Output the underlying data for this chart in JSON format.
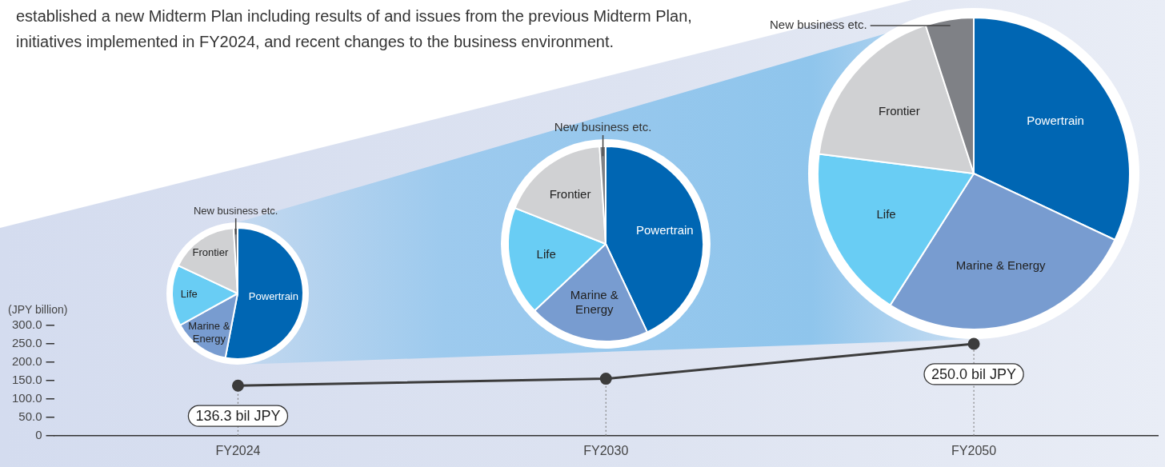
{
  "chart_data": [
    {
      "type": "line",
      "annotations": [
        "established a new Midterm Plan including results of and issues from the previous Midterm Plan,",
        "initiatives implemented in FY2024, and recent changes to the business environment."
      ],
      "ylabel": "(JPY billion)",
      "categories": [
        "FY2024",
        "FY2030",
        "FY2050"
      ],
      "values": [
        136.3,
        155,
        250.0
      ],
      "value_labels": [
        "136.3 bil JPY",
        null,
        "250.0 bil JPY"
      ],
      "color": "#3c3c3c",
      "marker": "circle",
      "line_style": "solid",
      "ylim": [
        0,
        300
      ],
      "yticks": [
        0,
        {
          "value": 50,
          "label": "50.0"
        },
        {
          "value": 100,
          "label": "100.0"
        },
        {
          "value": 150,
          "label": "150.0"
        },
        {
          "value": 200,
          "label": "200.0"
        },
        {
          "value": 250,
          "label": "250.0"
        },
        {
          "value": 300,
          "label": "300.0"
        }
      ],
      "ref_lines": [
        {
          "axis": "x",
          "value": "FY2024",
          "color": "#808080",
          "line_style": "dotted"
        },
        {
          "axis": "x",
          "value": "FY2030",
          "color": "#808080",
          "line_style": "dotted"
        },
        {
          "axis": "x",
          "value": "FY2050",
          "color": "#808080",
          "line_style": "dotted"
        }
      ]
    },
    {
      "type": "pie",
      "categories": [
        "Powertrain",
        "Marine & Energy",
        "Life",
        "Frontier",
        "New business etc."
      ],
      "values": [
        53,
        14,
        15,
        17,
        1
      ],
      "colors": [
        "#0066b3",
        "#789cd0",
        "#69cdf4",
        "#d0d1d3",
        "#7f8186"
      ]
    },
    {
      "type": "pie",
      "categories": [
        "Powertrain",
        "Marine & Energy",
        "Life",
        "Frontier",
        "New business etc."
      ],
      "values": [
        43,
        20,
        18,
        18,
        1
      ],
      "colors": [
        "#0066b3",
        "#789cd0",
        "#69cdf4",
        "#d0d1d3",
        "#7f8186"
      ]
    },
    {
      "type": "pie",
      "categories": [
        "Powertrain",
        "Marine & Energy",
        "Life",
        "Frontier",
        "New business etc."
      ],
      "values": [
        32,
        27,
        18,
        18,
        5
      ],
      "colors": [
        "#0066b3",
        "#789cd0",
        "#69cdf4",
        "#d0d1d3",
        "#7f8186"
      ]
    }
  ]
}
